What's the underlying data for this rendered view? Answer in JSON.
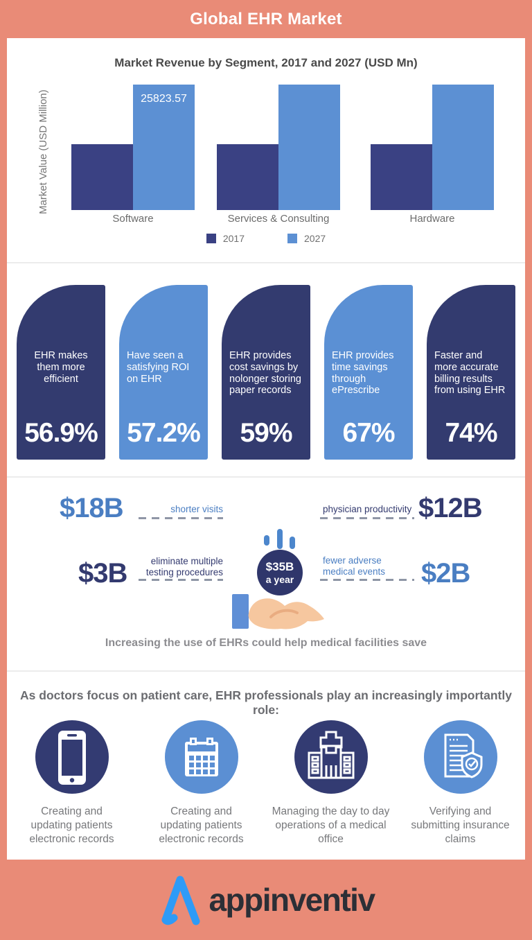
{
  "colors": {
    "coral": "#E98B77",
    "chart_navy": "#3A4183",
    "chart_blue": "#5C90D3",
    "pill_navy": "#333B6F",
    "pill_blue": "#5B90D4",
    "money_blue": "#4A7EC2",
    "money_navy": "#333A6F",
    "circle_navy": "#2F366B",
    "logo_blue": "#2E9BF7"
  },
  "header": {
    "title": "Global EHR Market"
  },
  "chart_data": {
    "type": "bar",
    "title": "Market Revenue by Segment, 2017 and 2027 (USD Mn)",
    "ylabel": "Market Value (USD Million)",
    "xlabel": "",
    "categories": [
      "Software",
      "Services & Consulting",
      "Hardware"
    ],
    "series": [
      {
        "name": "2017",
        "color": "#3A4183",
        "values": [
          13550,
          13550,
          13550
        ],
        "note": "bars unlabeled; values estimated from bar heights"
      },
      {
        "name": "2027",
        "color": "#5C90D3",
        "values": [
          25823.57,
          25823.57,
          25823.57
        ],
        "note": "only Software 2027 bar carries a printed label"
      }
    ],
    "data_label": "25823.57",
    "ylim": [
      0,
      25823.57
    ],
    "grid": false,
    "legend_position": "bottom"
  },
  "stats": [
    {
      "label": "EHR makes them more efficient",
      "value": "56.9%",
      "variant": "navy"
    },
    {
      "label": "Have seen a satisfying ROI on EHR",
      "value": "57.2%",
      "variant": "blue"
    },
    {
      "label": "EHR provides cost savings by nolonger storing paper records",
      "value": "59%",
      "variant": "navy"
    },
    {
      "label": "EHR provides time savings through ePrescribe",
      "value": "67%",
      "variant": "blue"
    },
    {
      "label": "Faster and more accurate billing results from using EHR",
      "value": "74%",
      "variant": "navy"
    }
  ],
  "savings": {
    "items": [
      {
        "amount": "$18B",
        "label": "shorter visits",
        "color": "blue",
        "side": "left"
      },
      {
        "amount": "$12B",
        "label": "physician productivity",
        "color": "navy",
        "side": "right"
      },
      {
        "amount": "$3B",
        "label": "eliminate multiple\ntesting procedures",
        "color": "navy",
        "side": "left"
      },
      {
        "amount": "$2B",
        "label": "fewer adverse\nmedical events",
        "color": "blue",
        "side": "right"
      }
    ],
    "center": {
      "line1": "$35B",
      "line2": "a year"
    },
    "caption": "Increasing the use of EHRs could help medical facilities save"
  },
  "roles": {
    "heading": "As doctors focus on patient care, EHR professionals play an increasingly importantly role:",
    "items": [
      {
        "icon": "smartphone-icon",
        "variant": "navy",
        "label": "Creating and updating patients electronic records"
      },
      {
        "icon": "calendar-icon",
        "variant": "blue",
        "label": "Creating and updating patients electronic records"
      },
      {
        "icon": "hospital-icon",
        "variant": "navy",
        "label": "Managing the day to day operations of a medical office"
      },
      {
        "icon": "insurance-claim-icon",
        "variant": "blue",
        "label": "Verifying and submitting insurance claims"
      }
    ]
  },
  "footer": {
    "brand": "appinventiv"
  }
}
